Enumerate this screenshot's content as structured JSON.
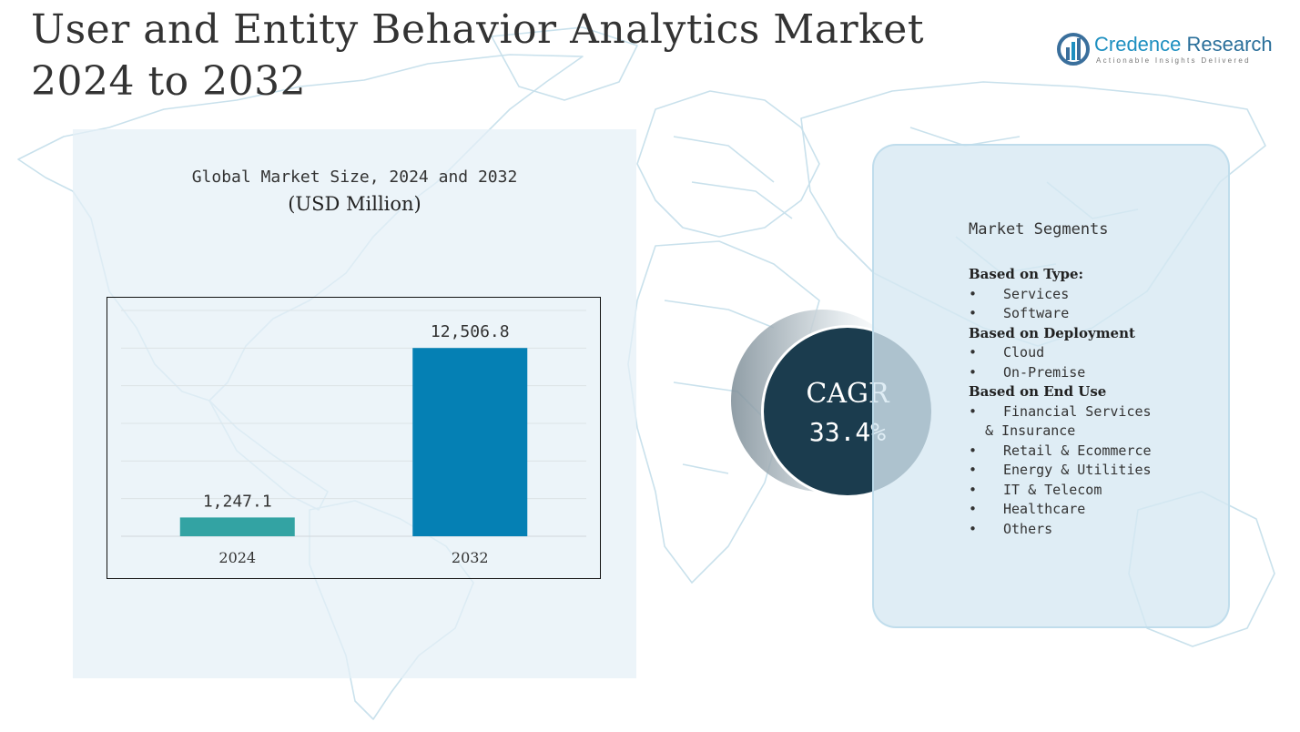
{
  "title": {
    "line1": "User and Entity Behavior Analytics Market",
    "line2": "2024 to 2032"
  },
  "logo": {
    "name_part1": "Credence",
    "name_part2": "Research",
    "tagline": "Actionable Insights Delivered"
  },
  "chart_data": {
    "type": "bar",
    "title": "Global Market Size, 2024 and 2032",
    "unit_label": "(USD Million)",
    "categories": [
      "2024",
      "2032"
    ],
    "values": [
      1247.1,
      12506.8
    ],
    "data_labels": [
      "1,247.1",
      "12,506.8"
    ],
    "bar_colors": [
      "#33a3a3",
      "#0580b4"
    ],
    "ylim": [
      0,
      15000
    ],
    "grid": true,
    "xlabel": "",
    "ylabel": ""
  },
  "cagr": {
    "label": "CAGR",
    "value": "33.4%",
    "color": "#1b3c4e"
  },
  "segments": {
    "title": "Market Segments",
    "groups": [
      {
        "heading": "Based on Type:",
        "items": [
          "Services",
          "Software"
        ]
      },
      {
        "heading": "Based on Deployment",
        "items": [
          "Cloud",
          "On-Premise"
        ]
      },
      {
        "heading": "Based on End Use",
        "items": [
          "Financial Services\n & Insurance",
          "Retail & Ecommerce",
          "Energy & Utilities",
          "IT & Telecom",
          "Healthcare",
          "Others"
        ]
      }
    ]
  }
}
